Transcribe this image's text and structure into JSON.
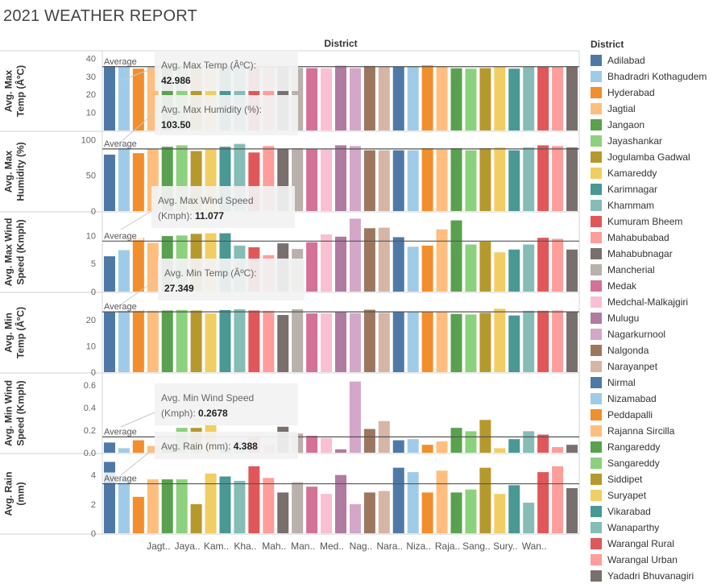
{
  "title": "2021 WEATHER REPORT",
  "chart_data": {
    "type": "bar",
    "header": "District",
    "legend_title": "District",
    "districts": [
      "Adilabad",
      "Bhadradri Kothagudem",
      "Hyderabad",
      "Jagtial",
      "Jangaon",
      "Jayashankar",
      "Jogulamba Gadwal",
      "Kamareddy",
      "Karimnagar",
      "Khammam",
      "Kumuram Bheem",
      "Mahabubabad",
      "Mahabubnagar",
      "Mancherial",
      "Medak",
      "Medchal-Malkajgiri",
      "Mulugu",
      "Nagarkurnool",
      "Nalgonda",
      "Narayanpet",
      "Nirmal",
      "Nizamabad",
      "Peddapalli",
      "Rajanna Sircilla",
      "Rangareddy",
      "Sangareddy",
      "Siddipet",
      "Suryapet",
      "Vikarabad",
      "Wanaparthy",
      "Warangal Rural",
      "Warangal Urban",
      "Yadadri Bhuvanagiri"
    ],
    "colors": [
      "#4e79a7",
      "#a0cbe8",
      "#f28e2b",
      "#ffbe7d",
      "#59a14f",
      "#8cd17d",
      "#b6992d",
      "#f1ce63",
      "#499894",
      "#86bcb6",
      "#e15759",
      "#ff9d9a",
      "#79706e",
      "#bab0ac",
      "#d37295",
      "#fabfd2",
      "#b07aa1",
      "#d4a6c8",
      "#9d7660",
      "#d7b5a6",
      "#4e79a7",
      "#a0cbe8",
      "#f28e2b",
      "#ffbe7d",
      "#59a14f",
      "#8cd17d",
      "#b6992d",
      "#f1ce63",
      "#499894",
      "#86bcb6",
      "#e15759",
      "#ff9d9a",
      "#79706e"
    ],
    "x_tick_labels": [
      "Jagt..",
      "Jaya..",
      "Kam..",
      "Kha..",
      "Mah..",
      "Man..",
      "Med..",
      "Nag..",
      "Nara..",
      "Niza..",
      "Raja..",
      "Sang..",
      "Sury..",
      "Wan.."
    ],
    "x_tick_after_index": [
      3,
      5,
      7,
      9,
      11,
      13,
      15,
      17,
      19,
      21,
      23,
      25,
      27,
      29
    ],
    "panels": [
      {
        "ylabel": "Avg. Max Temp (ÂºC)",
        "ylim": [
          0,
          42
        ],
        "ticks": [
          "40",
          "30",
          "20",
          "10"
        ],
        "tick_values": [
          40,
          30,
          20,
          10
        ],
        "average": 35.4,
        "average_label": "Average",
        "values": [
          35.8,
          35.6,
          34.3,
          35.1,
          35.7,
          35.9,
          35.2,
          35.3,
          35.5,
          35.5,
          35.2,
          35.3,
          35.4,
          34.7,
          34.6,
          34.5,
          35.9,
          34.6,
          35.8,
          35.4,
          35.5,
          35.7,
          36.1,
          35.7,
          34.5,
          34.3,
          34.6,
          35.5,
          34.3,
          35.4,
          35.4,
          35.4,
          35.6
        ]
      },
      {
        "ylabel": "Avg. Max Humidity (%)",
        "ylim": [
          0,
          106
        ],
        "ticks": [
          "100",
          "50",
          "0"
        ],
        "tick_values": [
          100,
          50,
          0
        ],
        "average": 87,
        "average_label": "Average",
        "values": [
          79,
          92,
          81,
          87,
          90,
          92,
          84,
          86,
          90,
          94,
          82,
          91,
          87,
          88,
          87,
          86,
          92,
          91,
          85,
          85,
          85,
          85,
          88,
          86,
          88,
          85,
          88,
          89,
          85,
          89,
          92,
          91,
          89
        ]
      },
      {
        "ylabel": "Avg. Max Wind Speed (Kmph)",
        "ylim": [
          0,
          13.5
        ],
        "ticks": [
          "10",
          "5",
          "0"
        ],
        "tick_values": [
          10,
          5,
          0
        ],
        "average": 9.0,
        "average_label": "Average",
        "values": [
          6.3,
          7.4,
          9.6,
          8.7,
          9.9,
          10.0,
          10.3,
          10.4,
          10.4,
          8.2,
          7.9,
          6.5,
          8.6,
          7.6,
          8.8,
          10.2,
          9.8,
          13.0,
          11.3,
          11.4,
          9.7,
          8.0,
          8.2,
          11.1,
          12.7,
          8.4,
          8.9,
          7.0,
          7.5,
          8.4,
          9.6,
          9.4,
          7.5
        ]
      },
      {
        "ylabel": "Avg. Min Temp (ÂºC)",
        "ylim": [
          0,
          29
        ],
        "ticks": [
          "20",
          "10",
          "0"
        ],
        "tick_values": [
          20,
          10,
          0
        ],
        "average": 23.1,
        "average_label": "Average",
        "values": [
          23.0,
          23.9,
          23.7,
          23.5,
          23.6,
          23.8,
          23.6,
          22.5,
          23.8,
          24.1,
          23.6,
          23.5,
          21.9,
          24.1,
          22.5,
          22.5,
          23.0,
          22.6,
          23.9,
          22.7,
          23.3,
          23.3,
          23.1,
          23.1,
          22.3,
          22.1,
          22.7,
          24.3,
          21.7,
          23.5,
          23.5,
          23.6,
          23.1
        ]
      },
      {
        "ylabel": "Avg. Min Wind Speed (Kmph)",
        "ylim": [
          0,
          0.67
        ],
        "ticks": [
          "0.6",
          "0.4",
          "0.2",
          "0.0"
        ],
        "tick_values": [
          0.6,
          0.4,
          0.2,
          0.0
        ],
        "average": 0.14,
        "average_label": "Average",
        "values": [
          0.09,
          0.04,
          0.11,
          0.06,
          0.05,
          0.22,
          0.22,
          0.26,
          0.05,
          0.1,
          0.13,
          0.07,
          0.23,
          0.17,
          0.15,
          0.13,
          0.03,
          0.63,
          0.21,
          0.28,
          0.11,
          0.12,
          0.07,
          0.1,
          0.22,
          0.19,
          0.29,
          0.04,
          0.12,
          0.19,
          0.16,
          0.05,
          0.07
        ]
      },
      {
        "ylabel": "Avg. Rain (mm)",
        "ylim": [
          0,
          5.2
        ],
        "ticks": [
          "4",
          "2",
          "0"
        ],
        "tick_values": [
          4,
          2,
          0
        ],
        "average": 3.4,
        "average_label": "Average",
        "values": [
          4.9,
          3.8,
          2.5,
          3.7,
          3.7,
          3.7,
          2.0,
          4.1,
          3.9,
          3.6,
          4.6,
          3.8,
          2.8,
          3.5,
          3.2,
          2.7,
          4.0,
          2.0,
          2.8,
          2.9,
          4.5,
          4.2,
          2.8,
          4.3,
          2.8,
          3.0,
          4.5,
          2.7,
          3.3,
          2.1,
          4.2,
          4.6,
          3.1
        ]
      }
    ],
    "tooltips": [
      {
        "label": "Avg. Max Temp (ÂºC):",
        "value": "42.986"
      },
      {
        "label": "Avg. Max Humidity (%):",
        "value": "103.50"
      },
      {
        "label": "Avg. Max Wind Speed (Kmph):",
        "value": "11.077"
      },
      {
        "label": "Avg. Min Temp (ÂºC):",
        "value": "27.349"
      },
      {
        "label": "Avg. Min Wind Speed (Kmph):",
        "value": "0.2678"
      },
      {
        "label": "Avg. Rain (mm):",
        "value": "4.388"
      }
    ]
  }
}
